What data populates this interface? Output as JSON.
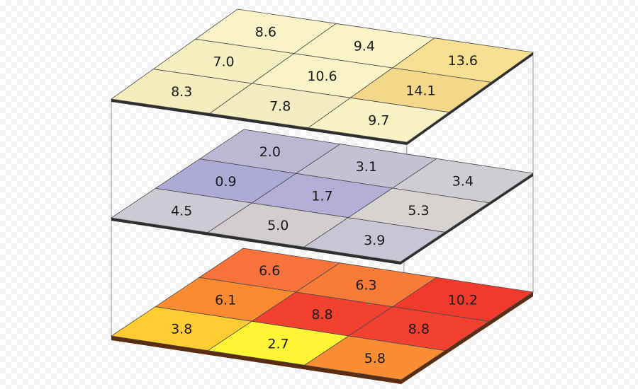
{
  "layers": [
    {
      "name": "top",
      "cells": [
        [
          {
            "value": "8.6",
            "color": "#f9f3c7"
          },
          {
            "value": "9.4",
            "color": "#f9f3c7"
          },
          {
            "value": "13.6",
            "color": "#f7e092"
          }
        ],
        [
          {
            "value": "7.0",
            "color": "#f6efc0"
          },
          {
            "value": "10.6",
            "color": "#f9f3c7"
          },
          {
            "value": "14.1",
            "color": "#f4d889"
          }
        ],
        [
          {
            "value": "8.3",
            "color": "#f5edbd"
          },
          {
            "value": "7.8",
            "color": "#f3ecc0"
          },
          {
            "value": "9.7",
            "color": "#f8f2c4"
          }
        ]
      ]
    },
    {
      "name": "middle",
      "cells": [
        [
          {
            "value": "2.0",
            "color": "#bcb8d4"
          },
          {
            "value": "3.1",
            "color": "#c5c1d4"
          },
          {
            "value": "3.4",
            "color": "#d0ccd3"
          }
        ],
        [
          {
            "value": "0.9",
            "color": "#aeaad6"
          },
          {
            "value": "1.7",
            "color": "#b2aed5"
          },
          {
            "value": "5.3",
            "color": "#d6d3d0"
          }
        ],
        [
          {
            "value": "4.5",
            "color": "#cecad4"
          },
          {
            "value": "5.0",
            "color": "#d2cecf"
          },
          {
            "value": "3.9",
            "color": "#c9c5d4"
          }
        ]
      ]
    },
    {
      "name": "bottom",
      "cells": [
        [
          {
            "value": "6.6",
            "color": "#f8733b"
          },
          {
            "value": "6.3",
            "color": "#f87b38"
          },
          {
            "value": "10.2",
            "color": "#f23a2c"
          }
        ],
        [
          {
            "value": "6.1",
            "color": "#fb8b31"
          },
          {
            "value": "8.8",
            "color": "#f2412e"
          },
          {
            "value": "8.8",
            "color": "#f2412e"
          }
        ],
        [
          {
            "value": "3.8",
            "color": "#ffcc33"
          },
          {
            "value": "2.7",
            "color": "#fff535"
          },
          {
            "value": "5.8",
            "color": "#fb8d33"
          }
        ]
      ]
    }
  ],
  "colors": {
    "edge": "#2e2e2e",
    "grid": "#4a4a4a",
    "connector": "#9a9a9a",
    "bottom_edge": "#5a2d12"
  }
}
